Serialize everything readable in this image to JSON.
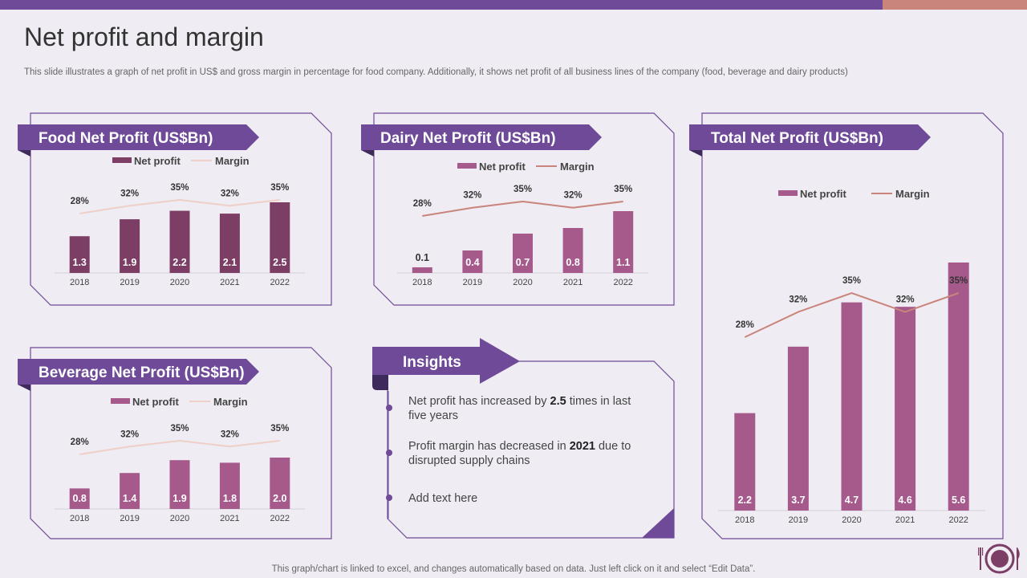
{
  "page": {
    "title": "Net profit and margin",
    "subtitle": "This slide illustrates a graph of net profit in US$ and gross margin in percentage for food company. Additionally, it shows net profit of all business lines of the company (food, beverage and dairy products)",
    "footer": "This graph/chart is linked to excel,  and changes automatically based on data. Just left click on it and select “Edit Data”.",
    "colors": {
      "accent": "#6e4a98",
      "secondary": "#c9847c",
      "food_bar": "#7c3e64",
      "other_bar": "#a65a8c",
      "margin_line": "#c9847c",
      "food_line": "#efcfc7"
    }
  },
  "legend": {
    "net_profit": "Net profit",
    "margin": "Margin"
  },
  "insights": {
    "title": "Insights",
    "items": [
      {
        "pre": "Net profit has increased by ",
        "bold": "2.5",
        "post": " times in last five years"
      },
      {
        "pre": "Profit margin has decreased in ",
        "bold": "2021",
        "post": " due to disrupted supply chains"
      },
      {
        "pre": "Add text here",
        "bold": "",
        "post": ""
      }
    ]
  },
  "chart_data": [
    {
      "id": "food",
      "type": "bar",
      "title": "Food Net Profit (US$Bn)",
      "categories": [
        "2018",
        "2019",
        "2020",
        "2021",
        "2022"
      ],
      "series": [
        {
          "name": "Net profit",
          "type": "bar",
          "values": [
            1.3,
            1.9,
            2.2,
            2.1,
            2.5
          ],
          "labels": [
            "1.3",
            "1.9",
            "2.2",
            "2.1",
            "2.5"
          ]
        },
        {
          "name": "Margin",
          "type": "line",
          "values": [
            28,
            32,
            35,
            32,
            35
          ],
          "labels": [
            "28%",
            "32%",
            "35%",
            "32%",
            "35%"
          ]
        }
      ],
      "legend": "top"
    },
    {
      "id": "dairy",
      "type": "bar",
      "title": "Dairy Net Profit (US$Bn)",
      "categories": [
        "2018",
        "2019",
        "2020",
        "2021",
        "2022"
      ],
      "series": [
        {
          "name": "Net profit",
          "type": "bar",
          "values": [
            0.1,
            0.4,
            0.7,
            0.8,
            1.1
          ],
          "labels": [
            "0.1",
            "0.4",
            "0.7",
            "0.8",
            "1.1"
          ]
        },
        {
          "name": "Margin",
          "type": "line",
          "values": [
            28,
            32,
            35,
            32,
            35
          ],
          "labels": [
            "28%",
            "32%",
            "35%",
            "32%",
            "35%"
          ]
        }
      ],
      "legend": "top"
    },
    {
      "id": "beverage",
      "type": "bar",
      "title": "Beverage Net Profit (US$Bn)",
      "categories": [
        "2018",
        "2019",
        "2020",
        "2021",
        "2022"
      ],
      "series": [
        {
          "name": "Net profit",
          "type": "bar",
          "values": [
            0.8,
            1.4,
            1.9,
            1.8,
            2.0
          ],
          "labels": [
            "0.8",
            "1.4",
            "1.9",
            "1.8",
            "2.0"
          ]
        },
        {
          "name": "Margin",
          "type": "line",
          "values": [
            28,
            32,
            35,
            32,
            35
          ],
          "labels": [
            "28%",
            "32%",
            "35%",
            "32%",
            "35%"
          ]
        }
      ],
      "legend": "top"
    },
    {
      "id": "total",
      "type": "bar",
      "title": "Total Net Profit (US$Bn)",
      "categories": [
        "2018",
        "2019",
        "2020",
        "2021",
        "2022"
      ],
      "series": [
        {
          "name": "Net profit",
          "type": "bar",
          "values": [
            2.2,
            3.7,
            4.7,
            4.6,
            5.6
          ],
          "labels": [
            "2.2",
            "3.7",
            "4.7",
            "4.6",
            "5.6"
          ]
        },
        {
          "name": "Margin",
          "type": "line",
          "values": [
            28,
            32,
            35,
            32,
            35
          ],
          "labels": [
            "28%",
            "32%",
            "35%",
            "32%",
            "35%"
          ]
        }
      ],
      "legend": "top"
    }
  ]
}
